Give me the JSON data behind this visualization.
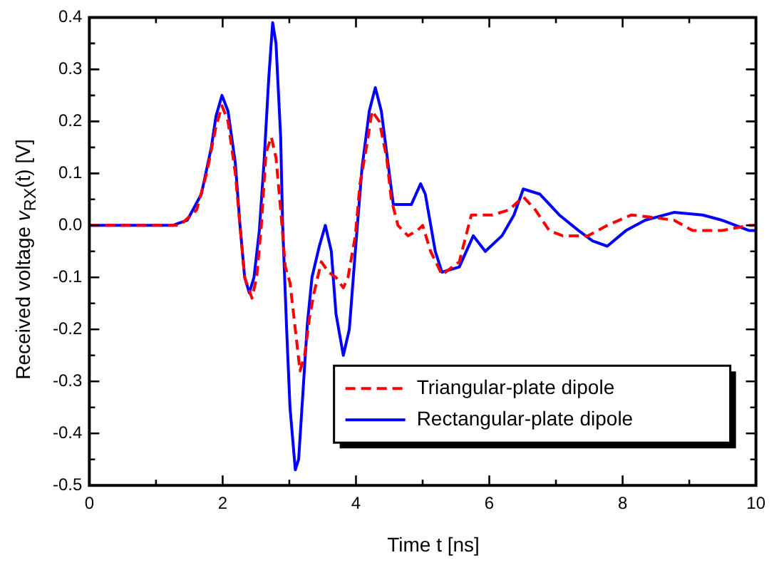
{
  "chart_data": {
    "type": "line",
    "xlabel": "Time  t  [ns]",
    "ylabel": "Received voltage  v$_{RX}$(t)  [V]",
    "xlim": [
      0,
      10
    ],
    "xticks": [
      0,
      {
        "value": 1,
        "label": null
      },
      2,
      {
        "value": 3,
        "label": null
      },
      4,
      {
        "value": 5,
        "label": null
      },
      6,
      {
        "value": 7,
        "label": null
      },
      8,
      {
        "value": 9,
        "label": null
      },
      10
    ],
    "ylim": [
      -0.5,
      0.4
    ],
    "yticks": [
      -0.5,
      {
        "value": -0.45,
        "label": null
      },
      -0.4,
      {
        "value": -0.35,
        "label": null
      },
      -0.3,
      {
        "value": -0.25,
        "label": null
      },
      -0.2,
      {
        "value": -0.15,
        "label": null
      },
      -0.1,
      {
        "value": -0.05,
        "label": null
      },
      {
        "value": 0,
        "label": "0.0"
      },
      {
        "value": 0.05,
        "label": null
      },
      0.1,
      {
        "value": 0.15,
        "label": null
      },
      0.2,
      {
        "value": 0.25,
        "label": null
      },
      0.3,
      {
        "value": 0.35,
        "label": null
      },
      0.4
    ],
    "grid": false,
    "legend": "bottom right",
    "marker": "none",
    "series": [
      {
        "name": "Triangular-plate dipole",
        "color": "#ff0000",
        "line_style": "dashed",
        "x": [
          0,
          1.35,
          1.4,
          1.61,
          1.76,
          1.9,
          1.99,
          2.08,
          2.19,
          2.26,
          2.33,
          2.44,
          2.51,
          2.58,
          2.65,
          2.73,
          2.8,
          2.87,
          2.94,
          3.01,
          3.09,
          3.16,
          3.23,
          3.3,
          3.37,
          3.48,
          3.59,
          3.7,
          3.81,
          3.88,
          3.99,
          4.06,
          4.17,
          4.24,
          4.35,
          4.46,
          4.53,
          4.63,
          4.78,
          4.92,
          5.0,
          5.12,
          5.29,
          5.55,
          5.73,
          6.05,
          6.3,
          6.51,
          6.69,
          6.9,
          7.1,
          7.48,
          7.77,
          8.13,
          8.48,
          8.77,
          9.05,
          9.49,
          9.9,
          10
        ],
        "values": [
          0,
          0,
          0.005,
          0.03,
          0.1,
          0.19,
          0.23,
          0.2,
          0.1,
          0.0,
          -0.1,
          -0.14,
          -0.1,
          0.0,
          0.14,
          0.17,
          0.13,
          0.03,
          -0.08,
          -0.11,
          -0.2,
          -0.28,
          -0.25,
          -0.18,
          -0.13,
          -0.07,
          -0.09,
          -0.1,
          -0.12,
          -0.1,
          -0.02,
          0.08,
          0.16,
          0.22,
          0.2,
          0.13,
          0.05,
          0.0,
          -0.02,
          -0.01,
          0.0,
          -0.05,
          -0.095,
          -0.07,
          0.02,
          0.02,
          0.03,
          0.055,
          0.03,
          -0.01,
          -0.02,
          -0.02,
          0.0,
          0.02,
          0.015,
          0.01,
          -0.01,
          -0.01,
          0.0,
          0.0
        ]
      },
      {
        "name": "Rectangular-plate dipole",
        "color": "#0000ff",
        "line_style": "solid",
        "x": [
          0,
          1.25,
          1.47,
          1.68,
          1.83,
          1.9,
          1.99,
          2.08,
          2.19,
          2.26,
          2.33,
          2.4,
          2.47,
          2.55,
          2.62,
          2.69,
          2.75,
          2.8,
          2.87,
          2.9,
          2.96,
          3.01,
          3.09,
          3.14,
          3.19,
          3.27,
          3.34,
          3.45,
          3.54,
          3.63,
          3.7,
          3.81,
          3.9,
          3.99,
          4.09,
          4.2,
          4.29,
          4.38,
          4.49,
          4.56,
          4.83,
          4.97,
          5.04,
          5.19,
          5.29,
          5.55,
          5.76,
          5.94,
          6.19,
          6.37,
          6.51,
          6.76,
          7.05,
          7.34,
          7.55,
          7.77,
          8.05,
          8.34,
          8.77,
          9.2,
          9.49,
          9.9,
          10
        ],
        "values": [
          0,
          0,
          0.01,
          0.06,
          0.15,
          0.21,
          0.25,
          0.22,
          0.12,
          0.0,
          -0.1,
          -0.13,
          -0.1,
          -0.01,
          0.12,
          0.28,
          0.39,
          0.35,
          0.17,
          0.0,
          -0.2,
          -0.35,
          -0.47,
          -0.45,
          -0.35,
          -0.19,
          -0.1,
          -0.04,
          0.0,
          -0.05,
          -0.17,
          -0.25,
          -0.2,
          -0.05,
          0.11,
          0.22,
          0.265,
          0.22,
          0.11,
          0.04,
          0.04,
          0.08,
          0.06,
          -0.05,
          -0.09,
          -0.08,
          -0.02,
          -0.05,
          -0.02,
          0.02,
          0.07,
          0.06,
          0.02,
          -0.01,
          -0.03,
          -0.04,
          -0.01,
          0.01,
          0.025,
          0.02,
          0.01,
          -0.01,
          -0.01
        ]
      }
    ]
  }
}
